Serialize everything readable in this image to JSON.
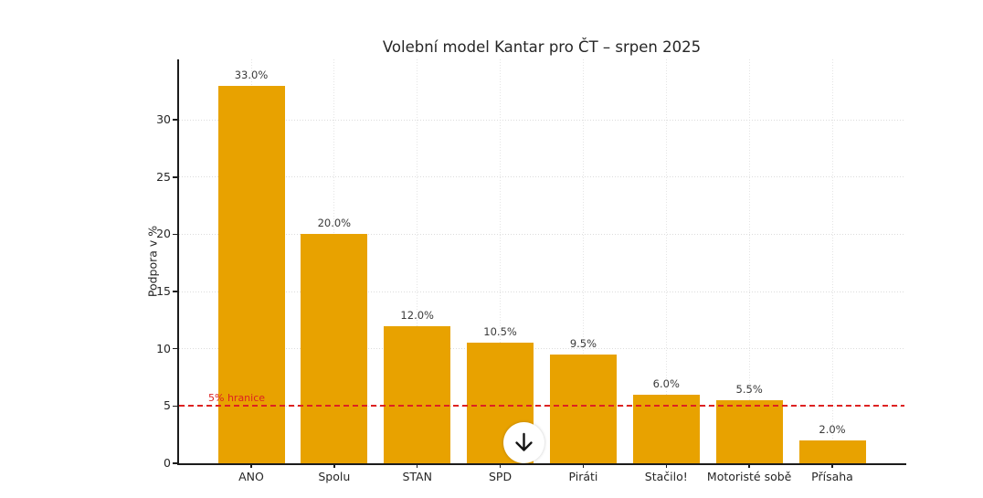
{
  "chart_data": {
    "type": "bar",
    "title": "Volební model Kantar pro ČT – srpen 2025",
    "xlabel": "",
    "ylabel": "Podpora v %",
    "categories": [
      "ANO",
      "Spolu",
      "STAN",
      "SPD",
      "Piráti",
      "Stačilo!",
      "Motoristé sobě",
      "Přísaha"
    ],
    "values": [
      33.0,
      20.0,
      12.0,
      10.5,
      9.5,
      6.0,
      5.5,
      2.0
    ],
    "value_labels": [
      "33.0%",
      "20.0%",
      "12.0%",
      "10.5%",
      "9.5%",
      "6.0%",
      "5.5%",
      "2.0%"
    ],
    "yticks": [
      0,
      5,
      10,
      15,
      20,
      25,
      30
    ],
    "ylim": [
      0,
      35.3
    ],
    "grid": true,
    "bar_color": "#E8A200",
    "threshold": {
      "value": 5,
      "label": "5% hranice",
      "color": "#dd2222"
    }
  },
  "overlay": {
    "scroll_down_icon": "arrow-down"
  }
}
